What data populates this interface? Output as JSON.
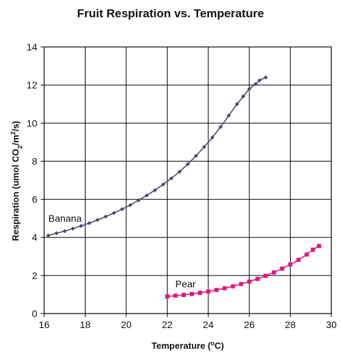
{
  "chart_data": {
    "type": "scatter",
    "title": "Fruit Respiration vs. Temperature",
    "xlabel_main": "Temperature (",
    "xlabel_sup": "o",
    "xlabel_end": "C)",
    "ylabel_main": "Respiration (umol CO",
    "ylabel_sub": "2",
    "ylabel_mid": "/m",
    "ylabel_sup": "2",
    "ylabel_end": "/s)",
    "xlim": [
      16,
      30
    ],
    "ylim": [
      0,
      14
    ],
    "xticks": [
      "16",
      "18",
      "20",
      "22",
      "24",
      "26",
      "28",
      "30"
    ],
    "yticks": [
      "0",
      "2",
      "4",
      "6",
      "8",
      "10",
      "12",
      "14"
    ],
    "grid": true,
    "series": [
      {
        "name": "Banana",
        "color": "#4a4a6a",
        "marker": "diamond",
        "x": [
          16.2,
          16.6,
          17.0,
          17.4,
          17.8,
          18.2,
          18.6,
          19.0,
          19.4,
          19.8,
          20.2,
          20.6,
          21.0,
          21.4,
          21.8,
          22.2,
          22.6,
          23.0,
          23.4,
          23.8,
          24.2,
          24.6,
          25.0,
          25.4,
          25.7,
          26.0,
          26.3,
          26.5,
          26.8
        ],
        "y": [
          4.1,
          4.22,
          4.33,
          4.46,
          4.6,
          4.75,
          4.92,
          5.09,
          5.28,
          5.48,
          5.7,
          5.95,
          6.2,
          6.48,
          6.78,
          7.1,
          7.45,
          7.85,
          8.28,
          8.75,
          9.25,
          9.8,
          10.4,
          11.0,
          11.4,
          11.8,
          12.05,
          12.25,
          12.4
        ]
      },
      {
        "name": "Pear",
        "color": "#e0167d",
        "marker": "square",
        "x": [
          22.0,
          22.4,
          22.8,
          23.2,
          23.6,
          24.0,
          24.4,
          24.8,
          25.2,
          25.6,
          26.0,
          26.4,
          26.8,
          27.2,
          27.6,
          28.0,
          28.4,
          28.8,
          29.1,
          29.4
        ],
        "y": [
          0.9,
          0.94,
          0.98,
          1.03,
          1.09,
          1.16,
          1.24,
          1.33,
          1.43,
          1.55,
          1.68,
          1.82,
          1.98,
          2.16,
          2.36,
          2.58,
          2.82,
          3.1,
          3.35,
          3.55
        ]
      }
    ]
  }
}
